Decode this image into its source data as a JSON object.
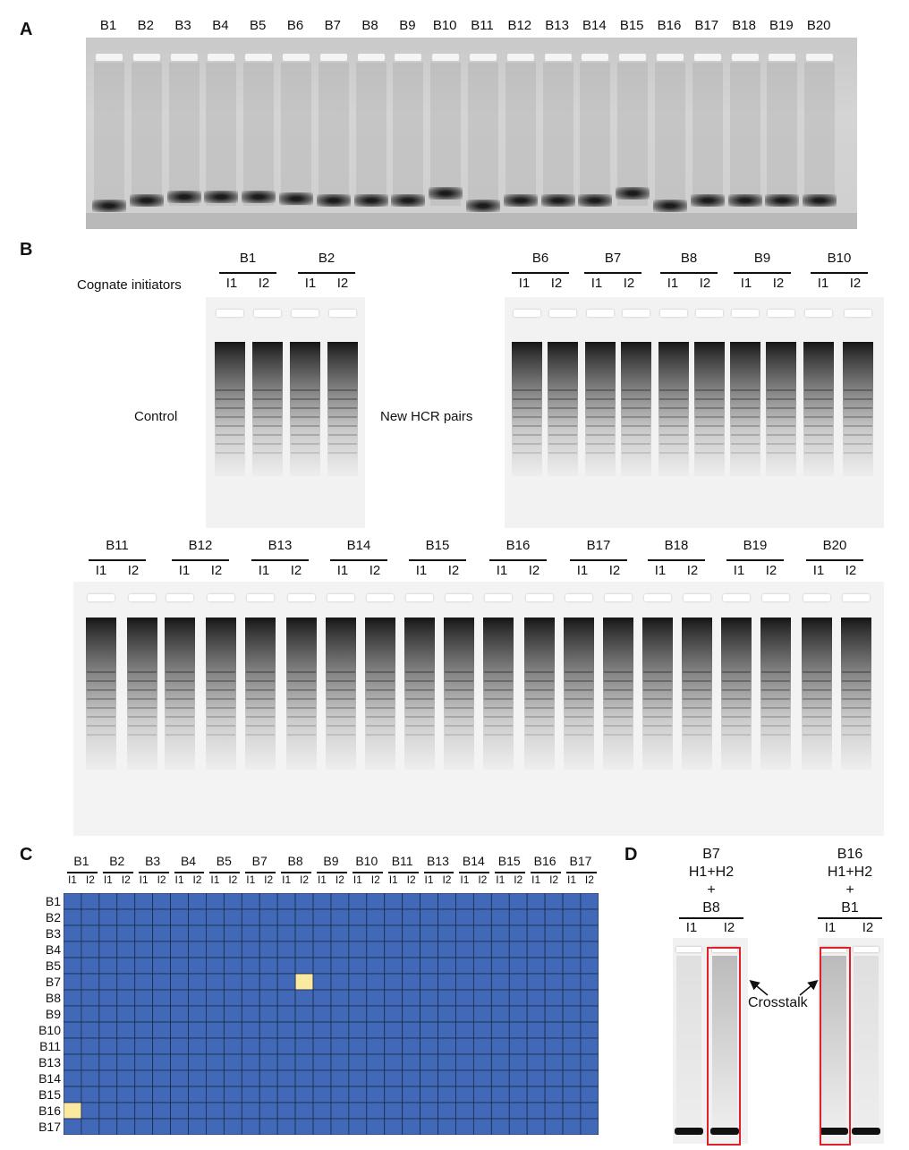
{
  "panels": {
    "a": "A",
    "b": "B",
    "c": "C",
    "d": "D"
  },
  "panel_a": {
    "lanes": [
      "B1",
      "B2",
      "B3",
      "B4",
      "B5",
      "B6",
      "B7",
      "B8",
      "B9",
      "B10",
      "B11",
      "B12",
      "B13",
      "B14",
      "B15",
      "B16",
      "B17",
      "B18",
      "B19",
      "B20"
    ]
  },
  "panel_b": {
    "row_label": "Cognate initiators",
    "control_label": "Control",
    "new_label": "New HCR pairs",
    "control_groups": [
      "B1",
      "B2"
    ],
    "new_groups": [
      "B6",
      "B7",
      "B8",
      "B9",
      "B10"
    ],
    "bottom_groups": [
      "B11",
      "B12",
      "B13",
      "B14",
      "B15",
      "B16",
      "B17",
      "B18",
      "B19",
      "B20"
    ],
    "initiators": [
      "I1",
      "I2"
    ]
  },
  "panel_c": {
    "columns": [
      "B1",
      "B2",
      "B3",
      "B4",
      "B5",
      "B7",
      "B8",
      "B9",
      "B10",
      "B11",
      "B13",
      "B14",
      "B15",
      "B16",
      "B17"
    ],
    "rows": [
      "B1",
      "B2",
      "B3",
      "B4",
      "B5",
      "B7",
      "B8",
      "B9",
      "B10",
      "B11",
      "B13",
      "B14",
      "B15",
      "B16",
      "B17"
    ],
    "subcolumns": [
      "I1",
      "I2"
    ],
    "colors": {
      "no_crosstalk": "#4169b8",
      "crosstalk": "#fbe9a0",
      "grid": "#1a2a4a"
    },
    "highlighted_cells": [
      {
        "row": "B7",
        "column": "B8",
        "initiator": "I2"
      },
      {
        "row": "B16",
        "column": "B1",
        "initiator": "I1"
      }
    ]
  },
  "panel_d": {
    "left": {
      "line1": "B7",
      "line2": "H1+H2",
      "line3": "+",
      "line4": "B8"
    },
    "right": {
      "line1": "B16",
      "line2": "H1+H2",
      "line3": "+",
      "line4": "B1"
    },
    "initiators": [
      "I1",
      "I2"
    ],
    "crosstalk_label": "Crosstalk",
    "highlight_color": "#e0202a"
  }
}
